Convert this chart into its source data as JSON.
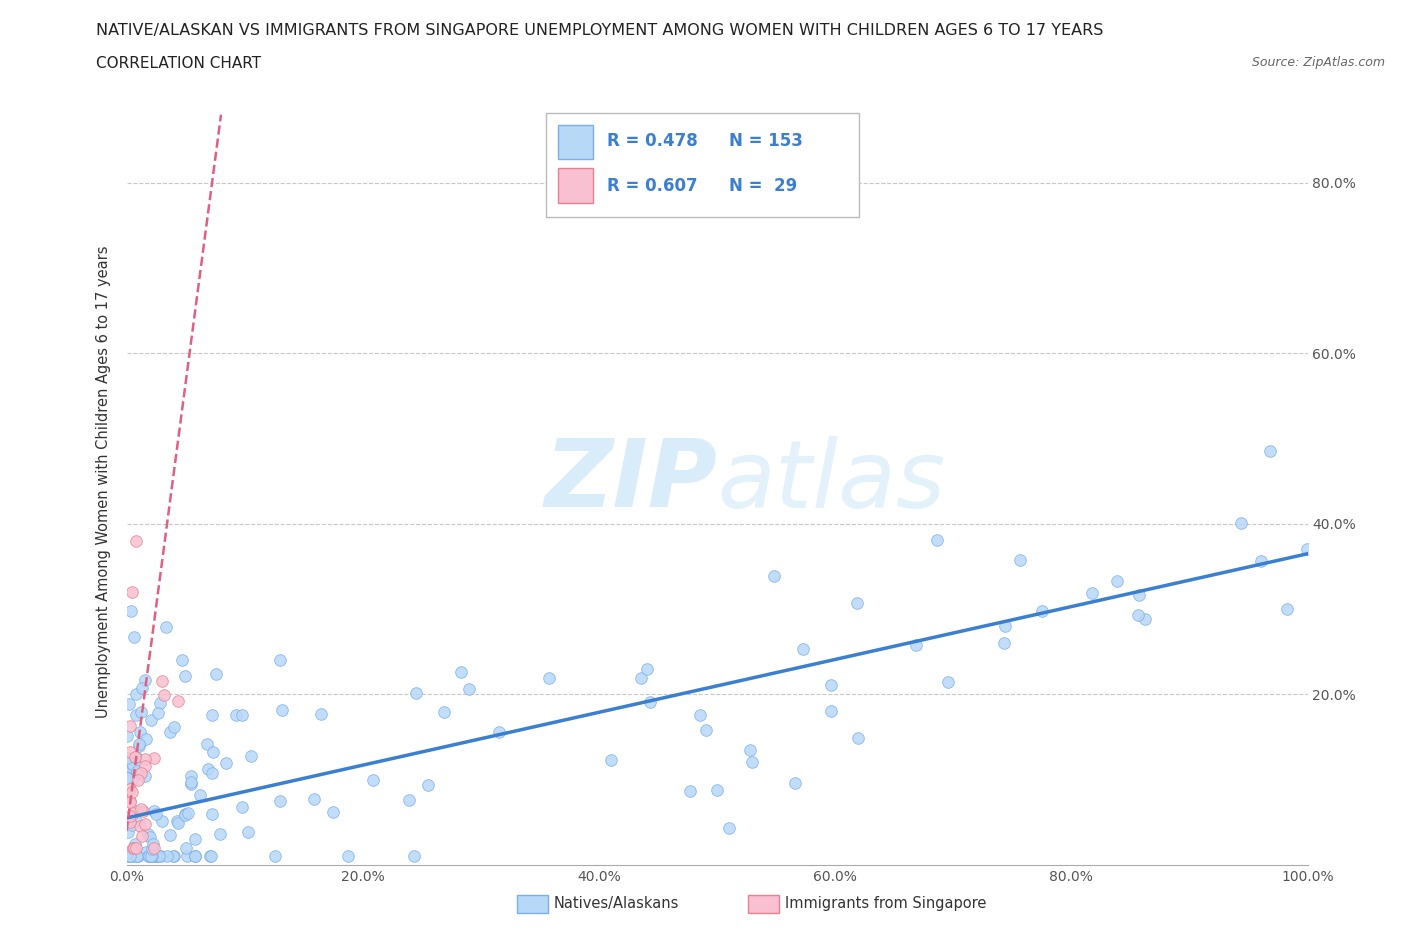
{
  "title": "NATIVE/ALASKAN VS IMMIGRANTS FROM SINGAPORE UNEMPLOYMENT AMONG WOMEN WITH CHILDREN AGES 6 TO 17 YEARS",
  "subtitle": "CORRELATION CHART",
  "source": "Source: ZipAtlas.com",
  "ylabel": "Unemployment Among Women with Children Ages 6 to 17 years",
  "xlim": [
    0.0,
    1.0
  ],
  "ylim": [
    0.0,
    0.9
  ],
  "xtick_labels": [
    "0.0%",
    "20.0%",
    "40.0%",
    "60.0%",
    "80.0%",
    "100.0%"
  ],
  "xtick_positions": [
    0.0,
    0.2,
    0.4,
    0.6,
    0.8,
    1.0
  ],
  "ytick_labels": [
    "20.0%",
    "40.0%",
    "60.0%",
    "80.0%"
  ],
  "ytick_positions": [
    0.2,
    0.4,
    0.6,
    0.8
  ],
  "native_color": "#b8d8f8",
  "native_edge": "#7aafe8",
  "singapore_color": "#f8c0d0",
  "singapore_edge": "#e88090",
  "trend_native_color": "#3a7fd0",
  "trend_singapore_color": "#e06080",
  "watermark_color": "#c8e4f8",
  "background_color": "#ffffff",
  "grid_color": "#c8c8c8",
  "legend_R1": "R = 0.478",
  "legend_N1": "N = 153",
  "legend_R2": "R = 0.607",
  "legend_N2": "N =  29",
  "native_trend_x0": 0.0,
  "native_trend_x1": 1.0,
  "native_trend_y0": 0.055,
  "native_trend_y1": 0.365,
  "singapore_trend_x0": 0.0,
  "singapore_trend_x1": 0.08,
  "singapore_trend_y0": 0.04,
  "singapore_trend_y1": 0.88
}
